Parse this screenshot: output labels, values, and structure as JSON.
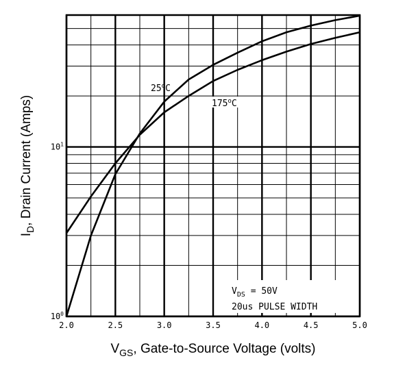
{
  "chart_data": {
    "type": "line",
    "xlabel": {
      "main": "V",
      "sub": "GS",
      "rest": ", Gate-to-Source Voltage (volts)"
    },
    "ylabel": {
      "main": "I",
      "sub": "D",
      "rest": ", Drain Current (Amps)"
    },
    "xlim": [
      2.0,
      5.0
    ],
    "ylim": [
      1,
      60
    ],
    "yscale": "log",
    "grid": true,
    "x_ticks": [
      "2.0",
      "2.5",
      "3.0",
      "3.5",
      "4.0",
      "4.5",
      "5.0"
    ],
    "y_ticks": [
      {
        "base": "10",
        "exp": "0",
        "value": 1
      },
      {
        "base": "10",
        "exp": "1",
        "value": 10
      }
    ],
    "series": [
      {
        "name": "25°C",
        "x": [
          2.0,
          2.25,
          2.5,
          2.75,
          3.0,
          3.25,
          3.5,
          3.75,
          4.0,
          4.25,
          4.5,
          4.75,
          5.0
        ],
        "y": [
          1.0,
          3.0,
          6.9,
          12.0,
          18.5,
          25.0,
          30.5,
          36.0,
          42.0,
          47.5,
          52.0,
          56.0,
          59.5
        ]
      },
      {
        "name": "175°C",
        "x": [
          2.0,
          2.25,
          2.5,
          2.75,
          3.0,
          3.25,
          3.5,
          3.75,
          4.0,
          4.25,
          4.5,
          4.75,
          5.0
        ],
        "y": [
          3.1,
          5.1,
          8.0,
          11.8,
          16.0,
          20.0,
          24.5,
          28.5,
          32.5,
          36.5,
          40.5,
          44.0,
          47.5
        ]
      }
    ],
    "annotations": {
      "curve_25": {
        "base": "25",
        "sup": "o",
        "unit": "C"
      },
      "curve_175": {
        "base": "175",
        "sup": "o",
        "unit": "C"
      },
      "vds": {
        "main": "V",
        "sub": "DS",
        "rest": " = 50V"
      },
      "pulse": "20us PULSE WIDTH"
    }
  }
}
